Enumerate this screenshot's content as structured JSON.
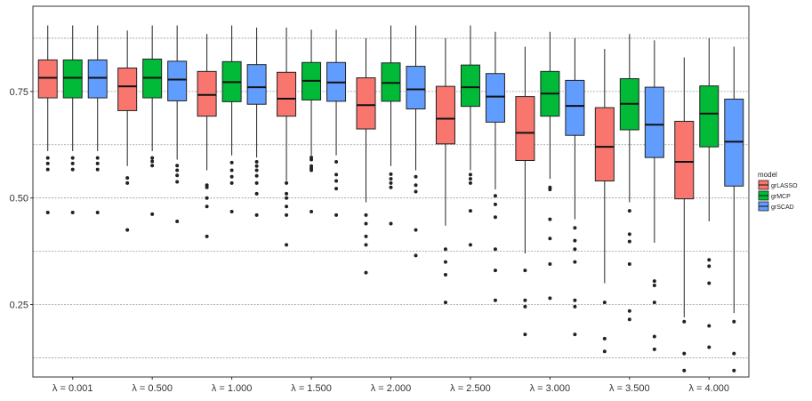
{
  "chart_data": {
    "type": "boxplot",
    "xlabel": "",
    "ylabel": "",
    "categories": [
      "λ = 0.001",
      "λ = 0.500",
      "λ = 1.000",
      "λ = 1.500",
      "λ = 2.000",
      "λ = 2.500",
      "λ = 3.000",
      "λ = 3.500",
      "λ = 4.000"
    ],
    "ylim": [
      0.08,
      0.95
    ],
    "yticks": [
      0.25,
      0.5,
      0.75
    ],
    "ytick_labels": [
      "0.25",
      "0.50",
      "0.75"
    ],
    "minor_gridlines": [
      0.125,
      0.375,
      0.625,
      0.875
    ],
    "grid": true,
    "legend": {
      "title": "model",
      "position": "right"
    },
    "series": [
      {
        "name": "grLASSO",
        "color": "#F8766D",
        "boxes": [
          {
            "whisker_low": 0.61,
            "q1": 0.735,
            "median": 0.782,
            "q3": 0.824,
            "whisker_high": 0.905,
            "outliers": [
              0.594,
              0.581,
              0.567,
              0.466
            ]
          },
          {
            "whisker_low": 0.575,
            "q1": 0.705,
            "median": 0.762,
            "q3": 0.805,
            "whisker_high": 0.893,
            "outliers": [
              0.547,
              0.535,
              0.425
            ]
          },
          {
            "whisker_low": 0.565,
            "q1": 0.692,
            "median": 0.742,
            "q3": 0.797,
            "whisker_high": 0.885,
            "outliers": [
              0.53,
              0.525,
              0.5,
              0.48,
              0.41
            ]
          },
          {
            "whisker_low": 0.54,
            "q1": 0.692,
            "median": 0.733,
            "q3": 0.795,
            "whisker_high": 0.9,
            "outliers": [
              0.535,
              0.51,
              0.5,
              0.48,
              0.46,
              0.39
            ]
          },
          {
            "whisker_low": 0.49,
            "q1": 0.662,
            "median": 0.718,
            "q3": 0.782,
            "whisker_high": 0.875,
            "outliers": [
              0.46,
              0.44,
              0.41,
              0.39,
              0.325
            ]
          },
          {
            "whisker_low": 0.435,
            "q1": 0.627,
            "median": 0.686,
            "q3": 0.762,
            "whisker_high": 0.875,
            "outliers": [
              0.38,
              0.35,
              0.32,
              0.255
            ]
          },
          {
            "whisker_low": 0.37,
            "q1": 0.588,
            "median": 0.653,
            "q3": 0.738,
            "whisker_high": 0.855,
            "outliers": [
              0.33,
              0.26,
              0.245,
              0.18
            ]
          },
          {
            "whisker_low": 0.3,
            "q1": 0.54,
            "median": 0.62,
            "q3": 0.712,
            "whisker_high": 0.85,
            "outliers": [
              0.255,
              0.17,
              0.14
            ]
          },
          {
            "whisker_low": 0.22,
            "q1": 0.498,
            "median": 0.585,
            "q3": 0.68,
            "whisker_high": 0.83,
            "outliers": [
              0.21,
              0.135,
              0.095
            ]
          }
        ]
      },
      {
        "name": "grMCP",
        "color": "#00BA38",
        "boxes": [
          {
            "whisker_low": 0.61,
            "q1": 0.735,
            "median": 0.782,
            "q3": 0.824,
            "whisker_high": 0.905,
            "outliers": [
              0.594,
              0.581,
              0.567,
              0.466
            ]
          },
          {
            "whisker_low": 0.61,
            "q1": 0.735,
            "median": 0.782,
            "q3": 0.826,
            "whisker_high": 0.905,
            "outliers": [
              0.594,
              0.586,
              0.576,
              0.462
            ]
          },
          {
            "whisker_low": 0.6,
            "q1": 0.726,
            "median": 0.772,
            "q3": 0.82,
            "whisker_high": 0.905,
            "outliers": [
              0.583,
              0.565,
              0.55,
              0.535,
              0.468
            ]
          },
          {
            "whisker_low": 0.6,
            "q1": 0.73,
            "median": 0.775,
            "q3": 0.818,
            "whisker_high": 0.895,
            "outliers": [
              0.595,
              0.59,
              0.575,
              0.57,
              0.565,
              0.468
            ]
          },
          {
            "whisker_low": 0.575,
            "q1": 0.727,
            "median": 0.77,
            "q3": 0.817,
            "whisker_high": 0.905,
            "outliers": [
              0.556,
              0.545,
              0.535,
              0.525,
              0.44
            ]
          },
          {
            "whisker_low": 0.565,
            "q1": 0.715,
            "median": 0.76,
            "q3": 0.812,
            "whisker_high": 0.905,
            "outliers": [
              0.555,
              0.545,
              0.535,
              0.47,
              0.39
            ]
          },
          {
            "whisker_low": 0.545,
            "q1": 0.692,
            "median": 0.745,
            "q3": 0.797,
            "whisker_high": 0.89,
            "outliers": [
              0.525,
              0.52,
              0.45,
              0.405,
              0.345,
              0.265
            ]
          },
          {
            "whisker_low": 0.49,
            "q1": 0.66,
            "median": 0.721,
            "q3": 0.78,
            "whisker_high": 0.885,
            "outliers": [
              0.47,
              0.415,
              0.398,
              0.345,
              0.235,
              0.215
            ]
          },
          {
            "whisker_low": 0.445,
            "q1": 0.62,
            "median": 0.698,
            "q3": 0.763,
            "whisker_high": 0.875,
            "outliers": [
              0.355,
              0.34,
              0.3,
              0.2,
              0.15
            ]
          }
        ]
      },
      {
        "name": "grSCAD",
        "color": "#619CFF",
        "boxes": [
          {
            "whisker_low": 0.61,
            "q1": 0.735,
            "median": 0.782,
            "q3": 0.824,
            "whisker_high": 0.905,
            "outliers": [
              0.594,
              0.581,
              0.567,
              0.466
            ]
          },
          {
            "whisker_low": 0.59,
            "q1": 0.728,
            "median": 0.778,
            "q3": 0.821,
            "whisker_high": 0.905,
            "outliers": [
              0.576,
              0.565,
              0.553,
              0.538,
              0.445
            ]
          },
          {
            "whisker_low": 0.595,
            "q1": 0.72,
            "median": 0.76,
            "q3": 0.813,
            "whisker_high": 0.9,
            "outliers": [
              0.585,
              0.575,
              0.565,
              0.552,
              0.535,
              0.51,
              0.46
            ]
          },
          {
            "whisker_low": 0.6,
            "q1": 0.727,
            "median": 0.771,
            "q3": 0.818,
            "whisker_high": 0.895,
            "outliers": [
              0.585,
              0.555,
              0.54,
              0.522,
              0.46
            ]
          },
          {
            "whisker_low": 0.565,
            "q1": 0.709,
            "median": 0.755,
            "q3": 0.809,
            "whisker_high": 0.905,
            "outliers": [
              0.55,
              0.53,
              0.515,
              0.425,
              0.365
            ]
          },
          {
            "whisker_low": 0.52,
            "q1": 0.678,
            "median": 0.738,
            "q3": 0.792,
            "whisker_high": 0.89,
            "outliers": [
              0.505,
              0.485,
              0.455,
              0.38,
              0.33,
              0.26
            ]
          },
          {
            "whisker_low": 0.45,
            "q1": 0.647,
            "median": 0.716,
            "q3": 0.776,
            "whisker_high": 0.875,
            "outliers": [
              0.43,
              0.4,
              0.38,
              0.35,
              0.26,
              0.245,
              0.18
            ]
          },
          {
            "whisker_low": 0.395,
            "q1": 0.595,
            "median": 0.672,
            "q3": 0.76,
            "whisker_high": 0.87,
            "outliers": [
              0.305,
              0.295,
              0.255,
              0.175,
              0.145
            ]
          },
          {
            "whisker_low": 0.23,
            "q1": 0.528,
            "median": 0.632,
            "q3": 0.732,
            "whisker_high": 0.855,
            "outliers": [
              0.21,
              0.135,
              0.095
            ]
          }
        ]
      }
    ]
  }
}
